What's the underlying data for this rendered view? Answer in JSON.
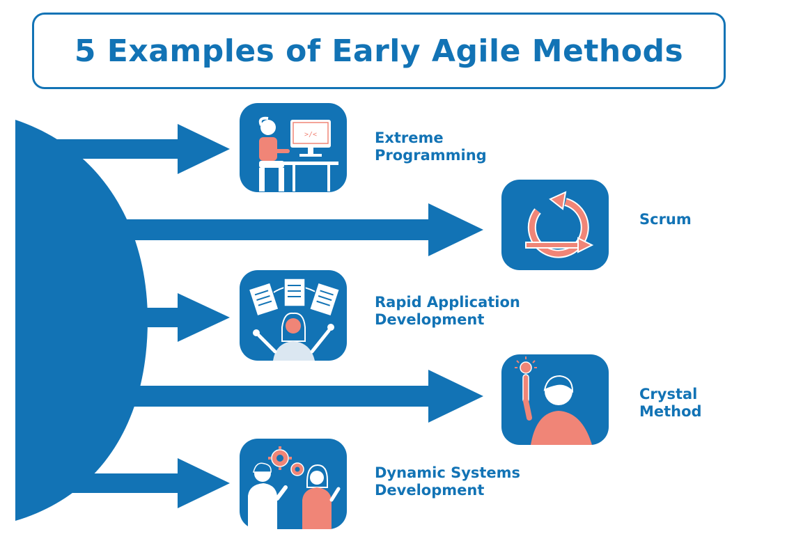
{
  "title": "5 Examples of Early Agile Methods",
  "colors": {
    "primary_blue": "#1273b5",
    "accent_salmon": "#f08577",
    "white": "#ffffff"
  },
  "methods": [
    {
      "line1": "Extreme",
      "line2": "Programming",
      "icon": "developer-at-computer-icon"
    },
    {
      "line1": "Scrum",
      "line2": "",
      "icon": "scrum-cycle-icon"
    },
    {
      "line1": "Rapid Application",
      "line2": "Development",
      "icon": "person-with-documents-icon"
    },
    {
      "line1": "Crystal",
      "line2": "Method",
      "icon": "idea-lightbulb-icon"
    },
    {
      "line1": "Dynamic Systems",
      "line2": "Development",
      "icon": "team-with-gears-icon"
    }
  ]
}
